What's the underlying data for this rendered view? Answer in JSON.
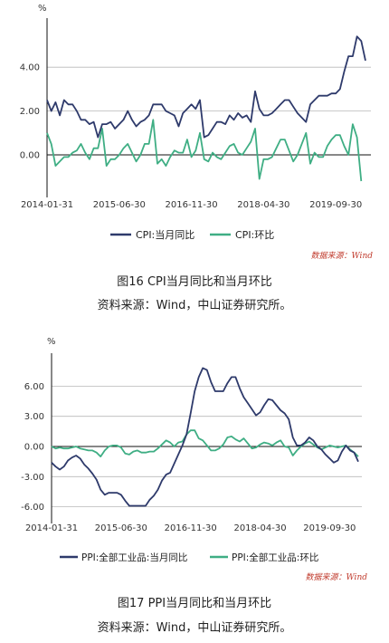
{
  "figures": [
    {
      "caption": "图16  CPI当月同比和当月环比",
      "source_line": "资料来源：Wind，中山证券研究所。",
      "data_source_note": "数据来源：Wind",
      "unit": "%"
    },
    {
      "caption": "图17  PPI当月同比和当月环比",
      "source_line": "资料来源：Wind，中山证券研究所。",
      "data_source_note": "数据来源：Wind",
      "unit": "%"
    }
  ],
  "colors": {
    "dark_series": "#2e3a6b",
    "green_series": "#3fae84",
    "axis": "#111111",
    "grid": "#b9b9b9",
    "note": "#c0392b"
  },
  "chart_data": [
    {
      "type": "line",
      "title": "",
      "xlabel": "",
      "ylabel": "%",
      "x_start": "2014-01-31",
      "x_end": "2020-03-31",
      "frequency": "monthly",
      "x_tick_labels": [
        "2014-01-31",
        "2015-06-30",
        "2016-11-30",
        "2018-04-30",
        "2019-09-30"
      ],
      "y_ticks": [
        0,
        2,
        4
      ],
      "y_tick_labels": [
        "0.00",
        "2.00",
        "4.00"
      ],
      "ylim": [
        -1.5,
        6.5
      ],
      "legend_position": "bottom",
      "series": [
        {
          "name": "CPI:当月同比",
          "color": "#2e3a6b",
          "values": [
            2.5,
            2.0,
            2.4,
            1.8,
            2.5,
            2.3,
            2.3,
            2.0,
            1.6,
            1.6,
            1.4,
            1.5,
            0.8,
            1.4,
            1.4,
            1.5,
            1.2,
            1.4,
            1.6,
            2.0,
            1.6,
            1.3,
            1.5,
            1.6,
            1.8,
            2.3,
            2.3,
            2.3,
            2.0,
            1.9,
            1.8,
            1.3,
            1.9,
            2.1,
            2.3,
            2.1,
            2.5,
            0.8,
            0.9,
            1.2,
            1.5,
            1.5,
            1.4,
            1.8,
            1.6,
            1.9,
            1.7,
            1.8,
            1.5,
            2.9,
            2.1,
            1.8,
            1.8,
            1.9,
            2.1,
            2.3,
            2.5,
            2.5,
            2.2,
            1.9,
            1.7,
            1.5,
            2.3,
            2.5,
            2.7,
            2.7,
            2.7,
            2.8,
            2.8,
            3.0,
            3.8,
            4.5,
            4.5,
            5.4,
            5.2,
            4.3
          ]
        },
        {
          "name": "CPI:环比",
          "color": "#3fae84",
          "values": [
            1.0,
            0.5,
            -0.5,
            -0.3,
            -0.1,
            -0.1,
            0.1,
            0.2,
            0.5,
            0.1,
            -0.2,
            0.3,
            0.3,
            1.2,
            -0.5,
            -0.2,
            -0.2,
            0.0,
            0.3,
            0.5,
            0.1,
            -0.3,
            0.0,
            0.5,
            0.5,
            1.6,
            -0.4,
            -0.2,
            -0.5,
            -0.1,
            0.2,
            0.1,
            0.1,
            0.7,
            -0.1,
            0.2,
            1.0,
            -0.2,
            -0.3,
            0.1,
            -0.1,
            -0.2,
            0.1,
            0.4,
            0.5,
            0.1,
            0.0,
            0.3,
            0.6,
            1.2,
            -1.1,
            -0.2,
            -0.2,
            -0.1,
            0.3,
            0.7,
            0.7,
            0.2,
            -0.3,
            0.0,
            0.5,
            1.0,
            -0.4,
            0.1,
            -0.1,
            -0.1,
            0.4,
            0.7,
            0.9,
            0.9,
            0.4,
            0.0,
            1.4,
            0.8,
            -1.2
          ]
        }
      ]
    },
    {
      "type": "line",
      "title": "",
      "xlabel": "",
      "ylabel": "%",
      "x_start": "2014-01-31",
      "x_end": "2020-03-31",
      "frequency": "monthly",
      "x_tick_labels": [
        "2014-01-31",
        "2015-06-30",
        "2016-11-30",
        "2018-04-30",
        "2019-09-30"
      ],
      "y_ticks": [
        -6,
        -3,
        0,
        3,
        6
      ],
      "y_tick_labels": [
        "-6.00",
        "-3.00",
        "0.00",
        "3.00",
        "6.00"
      ],
      "ylim": [
        -7.5,
        8.5
      ],
      "legend_position": "bottom",
      "series": [
        {
          "name": "PPI:全部工业品:当月同比",
          "color": "#2e3a6b",
          "values": [
            -1.6,
            -2.0,
            -2.3,
            -2.0,
            -1.4,
            -1.1,
            -0.9,
            -1.2,
            -1.8,
            -2.2,
            -2.7,
            -3.3,
            -4.3,
            -4.8,
            -4.6,
            -4.6,
            -4.6,
            -4.8,
            -5.4,
            -5.9,
            -5.9,
            -5.9,
            -5.9,
            -5.9,
            -5.3,
            -4.9,
            -4.3,
            -3.4,
            -2.8,
            -2.6,
            -1.7,
            -0.8,
            0.1,
            1.2,
            3.3,
            5.5,
            6.9,
            7.8,
            7.6,
            6.4,
            5.5,
            5.5,
            5.5,
            6.3,
            6.9,
            6.9,
            5.8,
            4.9,
            4.3,
            3.7,
            3.1,
            3.4,
            4.1,
            4.7,
            4.6,
            4.1,
            3.6,
            3.3,
            2.7,
            0.9,
            0.1,
            0.1,
            0.4,
            0.9,
            0.6,
            0.0,
            -0.3,
            -0.8,
            -1.2,
            -1.6,
            -1.4,
            -0.5,
            0.1,
            -0.4,
            -0.6,
            -1.5
          ]
        },
        {
          "name": "PPI:全部工业品:环比",
          "color": "#3fae84",
          "values": [
            0.0,
            -0.2,
            -0.1,
            -0.2,
            -0.2,
            -0.1,
            0.0,
            -0.2,
            -0.3,
            -0.4,
            -0.4,
            -0.6,
            -1.0,
            -0.4,
            0.0,
            0.1,
            0.1,
            -0.1,
            -0.7,
            -0.8,
            -0.5,
            -0.4,
            -0.6,
            -0.6,
            -0.5,
            -0.5,
            -0.2,
            0.2,
            0.6,
            0.4,
            0.0,
            0.4,
            0.5,
            1.2,
            1.6,
            1.6,
            0.8,
            0.6,
            0.1,
            -0.4,
            -0.4,
            -0.2,
            0.2,
            0.9,
            1.0,
            0.7,
            0.5,
            0.8,
            0.3,
            -0.2,
            -0.1,
            0.2,
            0.4,
            0.3,
            0.1,
            0.4,
            0.6,
            0.0,
            -0.1,
            -0.9,
            -0.4,
            0.0,
            0.3,
            0.5,
            0.2,
            -0.1,
            -0.3,
            -0.1,
            0.1,
            0.0,
            -0.1,
            0.0,
            0.1,
            -0.3,
            -0.6,
            -1.0
          ]
        }
      ]
    }
  ]
}
